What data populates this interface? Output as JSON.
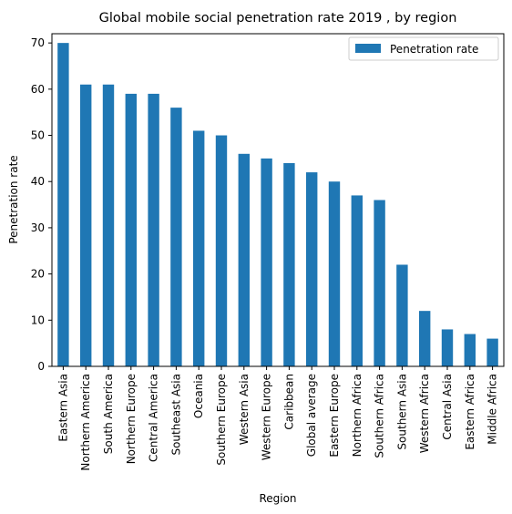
{
  "chart_data": {
    "type": "bar",
    "title": "Global mobile social penetration rate 2019 , by region",
    "xlabel": "Region",
    "ylabel": "Penetration rate",
    "ylim": [
      0,
      72
    ],
    "yticks": [
      "0",
      "10",
      "20",
      "30",
      "40",
      "50",
      "60",
      "70"
    ],
    "categories": [
      "Eastern Asia",
      "Northern America",
      "South America",
      "Northern Europe",
      "Central America",
      "Southeast Asia",
      "Oceania",
      "Southern Europe",
      "Western Asia",
      "Western Europe",
      "Caribbean",
      "Global average",
      "Eastern Europe",
      "Northern Africa",
      "Southern Africa",
      "Southern Asia",
      "Western Africa",
      "Central Asia",
      "Eastern Africa",
      "Middle Africa"
    ],
    "series": [
      {
        "name": "Penetration rate",
        "values": [
          70,
          61,
          61,
          59,
          59,
          56,
          51,
          50,
          46,
          45,
          44,
          42,
          40,
          37,
          36,
          22,
          12,
          8,
          7,
          6
        ],
        "color": "#1f77b4"
      }
    ],
    "grid": false,
    "legend": "top-right"
  }
}
